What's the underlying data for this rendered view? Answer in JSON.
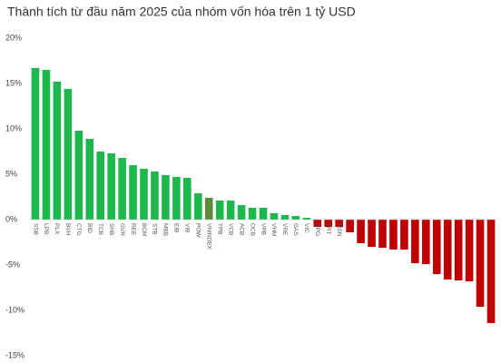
{
  "chart_data": {
    "type": "bar",
    "title": "Thành tích từ đầu năm 2025 của nhóm vốn hóa trên 1 tỷ USD",
    "categories": [
      "SSB",
      "LPB",
      "PLX",
      "BVH",
      "CTG",
      "BID",
      "TCB",
      "SHB",
      "GVR",
      "REE",
      "BCM",
      "STB",
      "MBB",
      "EIB",
      "VIB",
      "POW",
      "VNINDEX",
      "TPB",
      "VCB",
      "ACB",
      "OCB",
      "VPB",
      "VHM",
      "VRE",
      "GAS",
      "VIC",
      "HPG",
      "FRT",
      "MSN",
      null,
      null,
      null,
      null,
      null,
      null,
      null,
      null,
      null,
      null,
      null,
      null,
      null,
      null
    ],
    "values": [
      16.7,
      16.5,
      15.2,
      14.4,
      9.8,
      8.9,
      7.5,
      7.3,
      6.8,
      6.0,
      5.6,
      5.3,
      4.9,
      4.7,
      4.6,
      2.9,
      2.4,
      2.1,
      2.1,
      1.6,
      1.3,
      1.3,
      0.7,
      0.5,
      0.4,
      0.2,
      -0.8,
      -0.8,
      -0.8,
      -1.4,
      -2.6,
      -3.0,
      -3.1,
      -3.3,
      -3.3,
      -4.8,
      -4.9,
      -6.0,
      -6.6,
      -6.7,
      -6.8,
      -9.6,
      -11.4
    ],
    "colors": [
      "#1cb84c",
      "#1cb84c",
      "#1cb84c",
      "#1cb84c",
      "#1cb84c",
      "#1cb84c",
      "#1cb84c",
      "#1cb84c",
      "#1cb84c",
      "#1cb84c",
      "#1cb84c",
      "#1cb84c",
      "#1cb84c",
      "#1cb84c",
      "#1cb84c",
      "#1cb84c",
      "#5b8c3a",
      "#1cb84c",
      "#1cb84c",
      "#1cb84c",
      "#1cb84c",
      "#1cb84c",
      "#1cb84c",
      "#1cb84c",
      "#1cb84c",
      "#1cb84c",
      "#c00000",
      "#c00000",
      "#c00000",
      "#c00000",
      "#c00000",
      "#c00000",
      "#c00000",
      "#c00000",
      "#c00000",
      "#c00000",
      "#c00000",
      "#c00000",
      "#c00000",
      "#c00000",
      "#c00000",
      "#c00000",
      "#c00000"
    ],
    "ylim": [
      -15,
      20
    ],
    "yticks": [
      {
        "value": 20,
        "label": "20%"
      },
      {
        "value": 15,
        "label": "15%"
      },
      {
        "value": 10,
        "label": "10%"
      },
      {
        "value": 5,
        "label": "5%"
      },
      {
        "value": 0,
        "label": "0%"
      },
      {
        "value": -5,
        "label": "-5%"
      },
      {
        "value": -10,
        "label": "-10%"
      },
      {
        "value": -15,
        "label": "-15%"
      }
    ],
    "grid": false
  }
}
